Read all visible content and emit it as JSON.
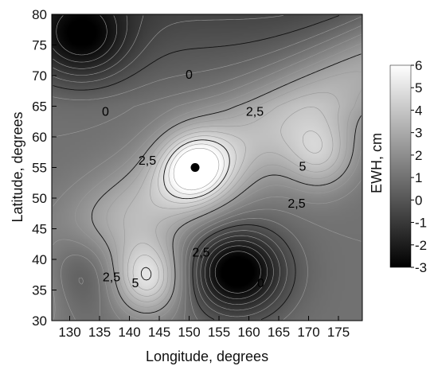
{
  "chart_data": {
    "type": "heatmap",
    "title": "",
    "xlabel": "Longitude, degrees",
    "ylabel": "Latitude, degrees",
    "xlim": [
      127,
      179
    ],
    "ylim": [
      30,
      80
    ],
    "x_ticks": [
      "130",
      "135",
      "140",
      "145",
      "150",
      "155",
      "160",
      "165",
      "170",
      "175"
    ],
    "y_ticks": [
      "30",
      "35",
      "40",
      "45",
      "50",
      "55",
      "60",
      "65",
      "70",
      "75",
      "80"
    ],
    "colorbar": {
      "label": "EWH, cm",
      "range": [
        -3,
        6
      ],
      "ticks": [
        "-3",
        "-2",
        "-1",
        "0",
        "1",
        "2",
        "3",
        "4",
        "5",
        "6"
      ],
      "colormap": [
        "#000000",
        "#ffffff"
      ]
    },
    "grid": false,
    "features": [
      {
        "name": "high-center",
        "lon": 151,
        "lat": 55,
        "amp": 3.8
      },
      {
        "name": "high-east-lobe",
        "lon": 172,
        "lat": 57,
        "amp": 2.6
      },
      {
        "name": "low-northwest",
        "lon": 132,
        "lat": 76,
        "amp": -3.0
      },
      {
        "name": "low-southeast",
        "lon": 158,
        "lat": 38,
        "amp": -4.5
      },
      {
        "name": "high-japan-peak",
        "lon": 143,
        "lat": 37,
        "amp": 4.0
      },
      {
        "name": "low-southwest",
        "lon": 131,
        "lat": 39,
        "amp": -2.8
      }
    ],
    "contour_labels": [
      {
        "text": "0",
        "lon": 136,
        "lat": 64
      },
      {
        "text": "0",
        "lon": 150,
        "lat": 70
      },
      {
        "text": "2,5",
        "lon": 161,
        "lat": 64
      },
      {
        "text": "2,5",
        "lon": 143,
        "lat": 56
      },
      {
        "text": "5",
        "lon": 169,
        "lat": 55
      },
      {
        "text": "2,5",
        "lon": 168,
        "lat": 49
      },
      {
        "text": "2,5",
        "lon": 152,
        "lat": 41
      },
      {
        "text": "2,5",
        "lon": 137,
        "lat": 37
      },
      {
        "text": "5",
        "lon": 141,
        "lat": 36
      },
      {
        "text": "0",
        "lon": 162,
        "lat": 36
      }
    ],
    "marker": {
      "lon": 151,
      "lat": 55
    }
  }
}
